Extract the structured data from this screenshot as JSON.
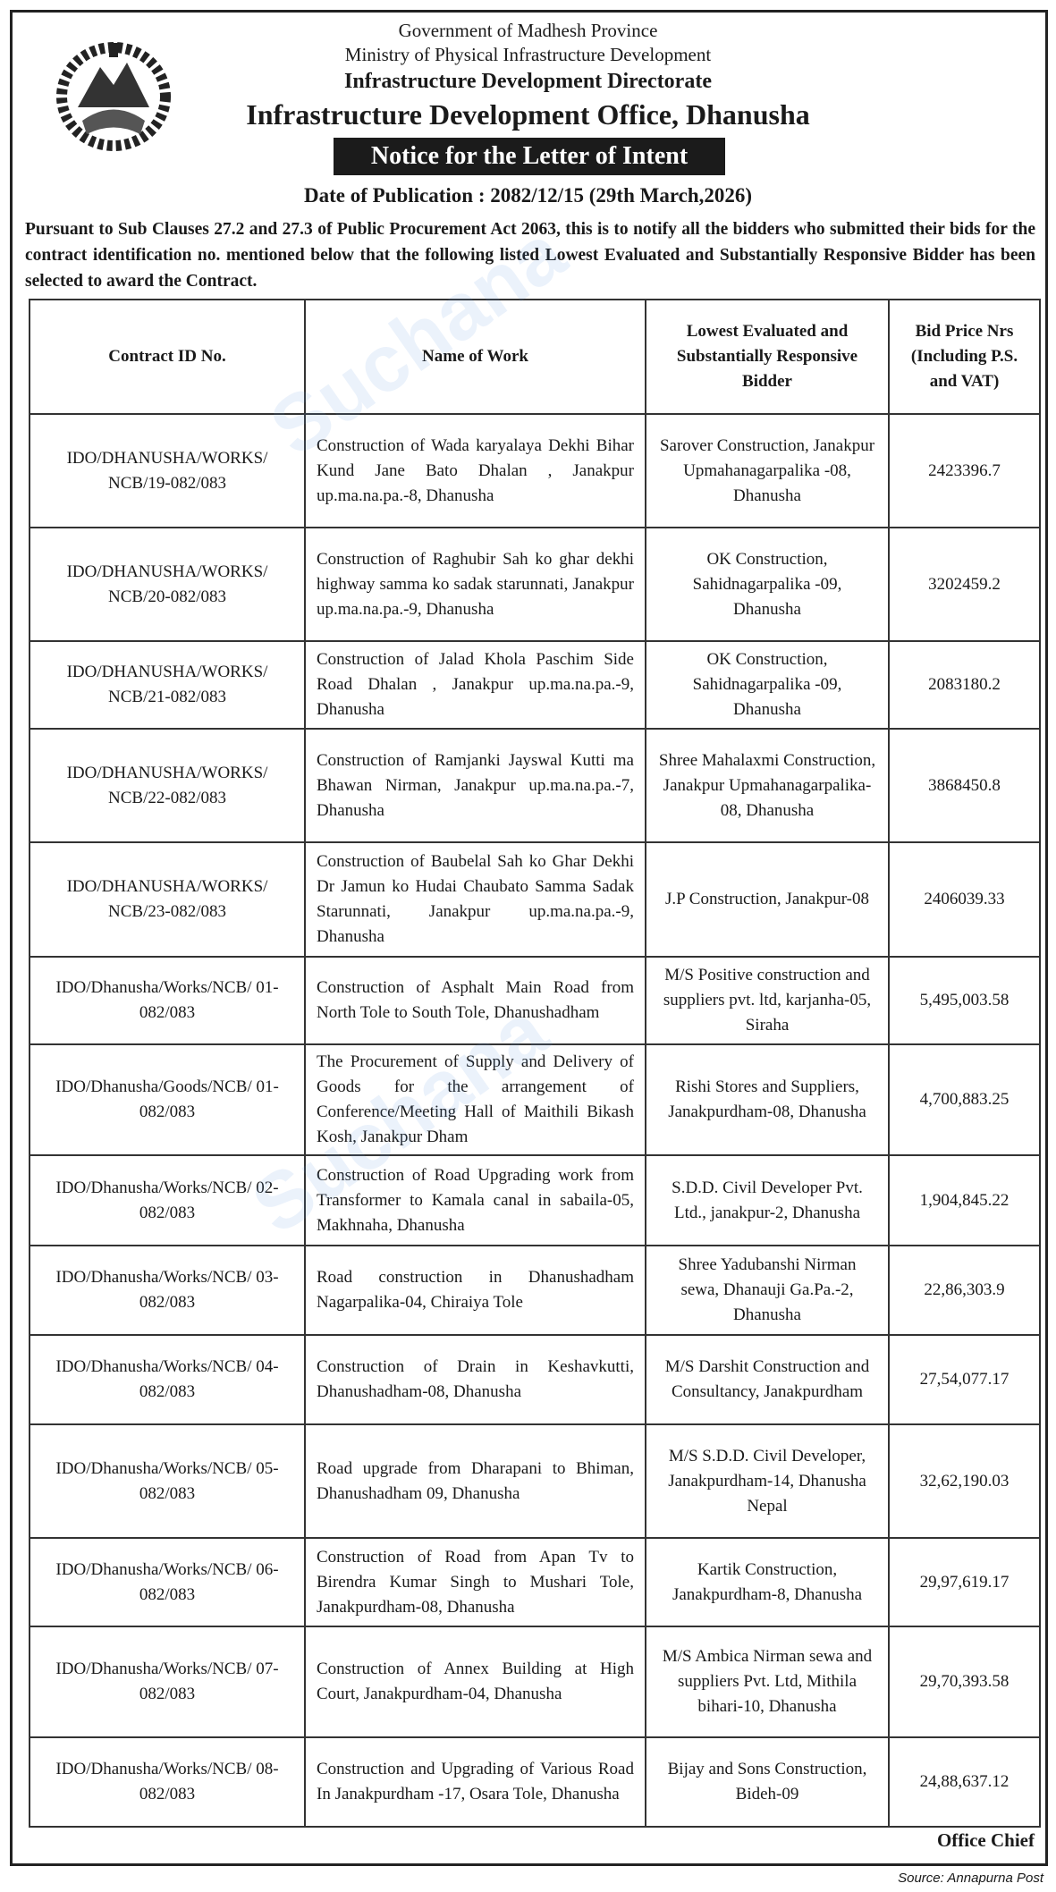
{
  "header": {
    "line1": "Government of Madhesh Province",
    "line2": "Ministry of Physical Infrastructure Development",
    "line3": "Infrastructure Development Directorate",
    "line4": "Infrastructure Development Office, Dhanusha",
    "notice_title": "Notice for the Letter of Intent",
    "date": "Date of Publication : 2082/12/15 (29th March,2026)"
  },
  "intro": "Pursuant to Sub Clauses 27.2 and 27.3 of Public Procurement Act 2063, this is to notify all the bidders who submitted their bids for the contract identification no. mentioned below that the following listed Lowest Evaluated and Substantially Responsive Bidder has been selected to award the Contract.",
  "table": {
    "headers": [
      "Contract ID No.",
      "Name of Work",
      "Lowest Evaluated and Substantially Responsive Bidder",
      "Bid Price Nrs (Including P.S. and VAT)"
    ],
    "rows": [
      {
        "id": "IDO/DHANUSHA/WORKS/ NCB/19-082/083",
        "work": "Construction of Wada karyalaya Dekhi Bihar Kund Jane Bato Dhalan , Janakpur up.ma.na.pa.-8, Dhanusha",
        "bidder": "Sarover Construction, Janakpur Upmahanagarpalika -08, Dhanusha",
        "price": "2423396.7"
      },
      {
        "id": "IDO/DHANUSHA/WORKS/ NCB/20-082/083",
        "work": "Construction of Raghubir Sah ko ghar dekhi highway samma ko sadak starunnati, Janakpur up.ma.na.pa.-9, Dhanusha",
        "bidder": "OK Construction, Sahidnagarpalika -09, Dhanusha",
        "price": "3202459.2"
      },
      {
        "id": "IDO/DHANUSHA/WORKS/ NCB/21-082/083",
        "work": "Construction of Jalad Khola Paschim Side Road Dhalan , Janakpur up.ma.na.pa.-9, Dhanusha",
        "bidder": "OK Construction, Sahidnagarpalika -09, Dhanusha",
        "price": "2083180.2"
      },
      {
        "id": "IDO/DHANUSHA/WORKS/ NCB/22-082/083",
        "work": "Construction of Ramjanki Jayswal Kutti ma Bhawan Nirman, Janakpur up.ma.na.pa.-7, Dhanusha",
        "bidder": "Shree Mahalaxmi Construction, Janakpur Upmahanagarpalika-08, Dhanusha",
        "price": "3868450.8"
      },
      {
        "id": "IDO/DHANUSHA/WORKS/ NCB/23-082/083",
        "work": "Construction of Baubelal Sah ko Ghar Dekhi Dr Jamun ko Hudai Chaubato Samma Sadak Starunnati, Janakpur up.ma.na.pa.-9, Dhanusha",
        "bidder": "J.P Construction, Janakpur-08",
        "price": "2406039.33"
      },
      {
        "id": "IDO/Dhanusha/Works/NCB/ 01-082/083",
        "work": "Construction of Asphalt Main Road from North Tole to South Tole, Dhanushadham",
        "bidder": "M/S Positive construction and suppliers pvt. ltd, karjanha-05, Siraha",
        "price": "5,495,003.58"
      },
      {
        "id": "IDO/Dhanusha/Goods/NCB/ 01-082/083",
        "work": "The Procurement of Supply and Delivery of Goods for the arrangement of Conference/Meeting Hall of Maithili Bikash Kosh, Janakpur Dham",
        "bidder": "Rishi Stores and Suppliers, Janakpurdham-08, Dhanusha",
        "price": "4,700,883.25"
      },
      {
        "id": "IDO/Dhanusha/Works/NCB/ 02-082/083",
        "work": "Construction of Road Upgrading work from Transformer to Kamala canal in sabaila-05, Makhnaha, Dhanusha",
        "bidder": "S.D.D. Civil Developer Pvt. Ltd., janakpur-2, Dhanusha",
        "price": "1,904,845.22"
      },
      {
        "id": "IDO/Dhanusha/Works/NCB/ 03-082/083",
        "work": "Road construction in Dhanushadham Nagarpalika-04, Chiraiya Tole",
        "bidder": "Shree Yadubanshi Nirman sewa, Dhanauji Ga.Pa.-2, Dhanusha",
        "price": "22,86,303.9"
      },
      {
        "id": "IDO/Dhanusha/Works/NCB/ 04-082/083",
        "work": "Construction of Drain in Keshavkutti, Dhanushadham-08, Dhanusha",
        "bidder": "M/S Darshit Construction and Consultancy, Janakpurdham",
        "price": "27,54,077.17"
      },
      {
        "id": "IDO/Dhanusha/Works/NCB/ 05-082/083",
        "work": "Road upgrade from Dharapani to Bhiman, Dhanushadham 09, Dhanusha",
        "bidder": "M/S S.D.D. Civil Developer, Janakpurdham-14, Dhanusha Nepal",
        "price": "32,62,190.03"
      },
      {
        "id": "IDO/Dhanusha/Works/NCB/ 06-082/083",
        "work": "Construction of Road from Apan Tv to Birendra Kumar Singh to Mushari Tole, Janakpurdham-08, Dhanusha",
        "bidder": "Kartik Construction, Janakpurdham-8, Dhanusha",
        "price": "29,97,619.17"
      },
      {
        "id": "IDO/Dhanusha/Works/NCB/ 07-082/083",
        "work": "Construction of Annex Building at High Court, Janakpurdham-04, Dhanusha",
        "bidder": "M/S Ambica Nirman sewa and suppliers Pvt. Ltd, Mithila bihari-10, Dhanusha",
        "price": "29,70,393.58"
      },
      {
        "id": "IDO/Dhanusha/Works/NCB/ 08-082/083",
        "work": "Construction and Upgrading of Various Road In Janakpurdham -17, Osara Tole, Dhanusha",
        "bidder": "Bijay and Sons Construction, Bideh-09",
        "price": "24,88,637.12"
      }
    ]
  },
  "signature": "Office Chief",
  "source": "Source: Annapurna Post"
}
